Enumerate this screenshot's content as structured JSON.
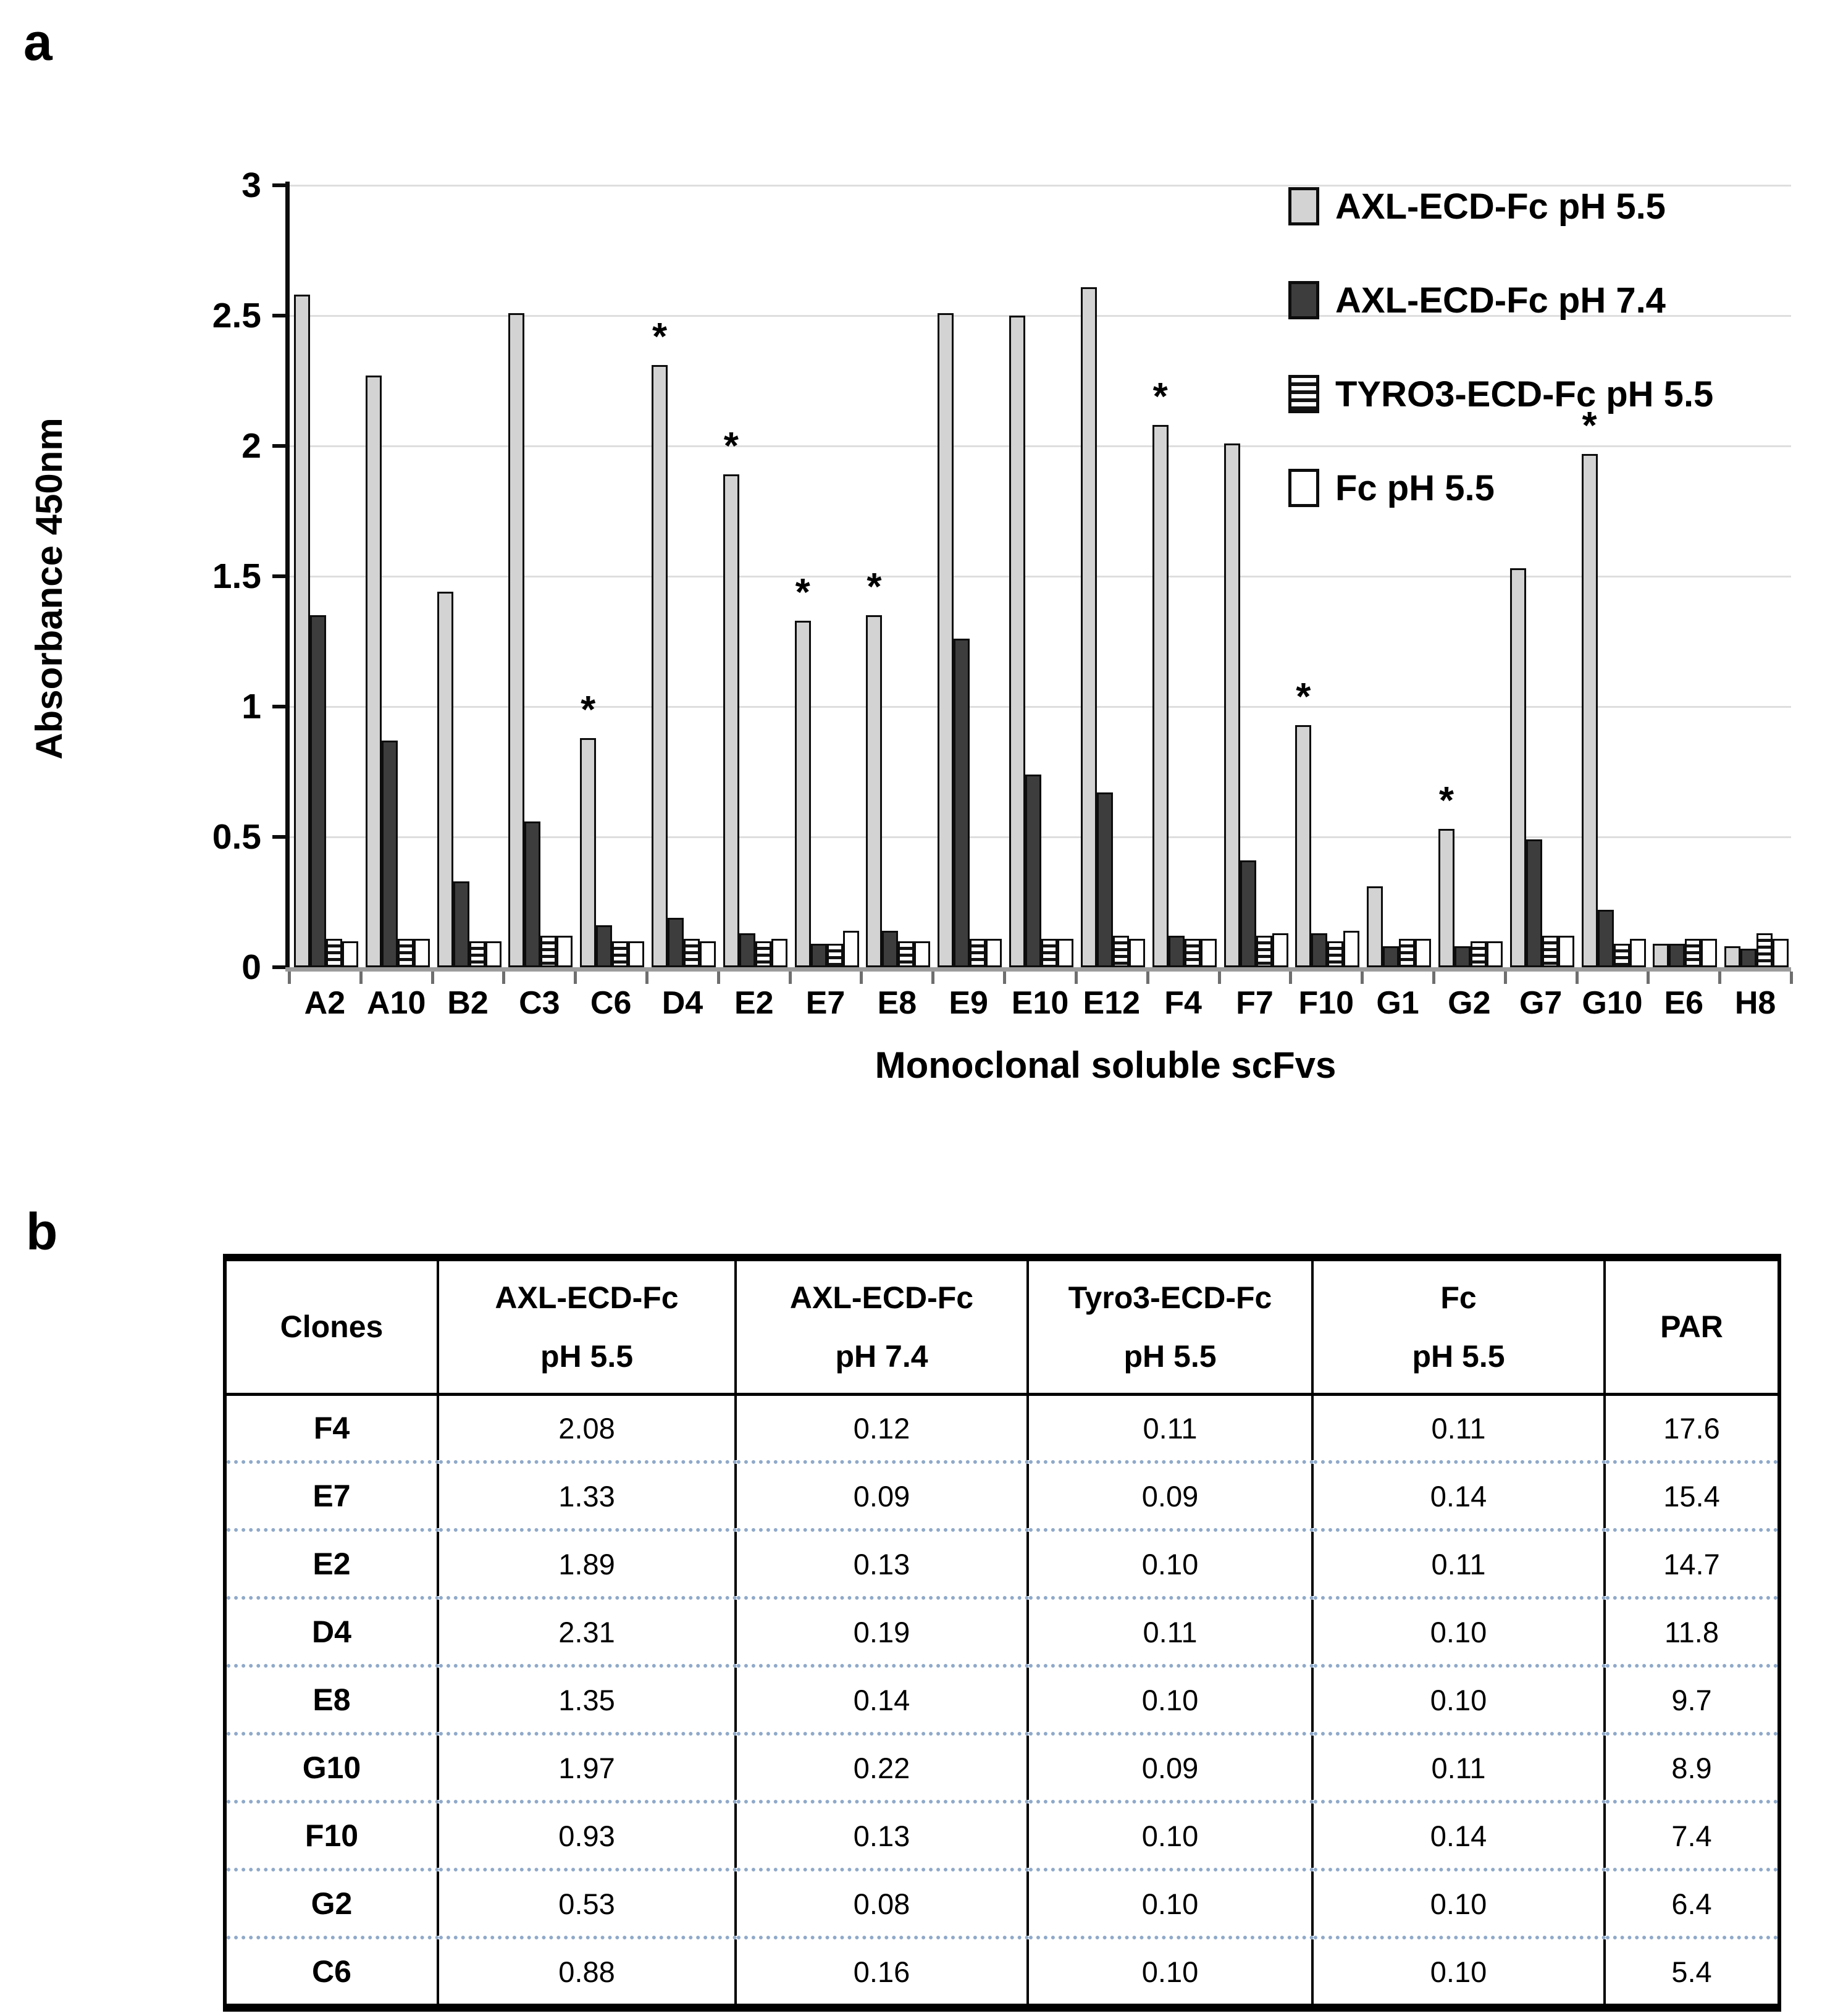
{
  "figure": {
    "panel_a_label": "a",
    "panel_b_label": "b"
  },
  "colors": {
    "bar_axl_ph55_fill": "#d3d3d3",
    "bar_axl_ph74_fill": "#3d3d3d",
    "bar_outline": "#0d0d0d",
    "bar_tyro3_pattern": "horizontal-stripes",
    "bar_fc_fill": "#ffffff",
    "gridline": "#dedede",
    "table_row_divider": "#8fa9c9"
  },
  "chart_data": [
    {
      "panel": "a",
      "type": "bar",
      "title": "",
      "xlabel": "Monoclonal soluble scFvs",
      "ylabel": "Absorbance 450nm",
      "ylim": [
        0,
        3
      ],
      "yticks": [
        0,
        0.5,
        1,
        1.5,
        2,
        2.5,
        3
      ],
      "ytick_labels": [
        "0",
        "0.5",
        "1",
        "1.5",
        "2",
        "2.5",
        "3"
      ],
      "grid": true,
      "legend_position": "top-right",
      "categories": [
        "A2",
        "A10",
        "B2",
        "C3",
        "C6",
        "D4",
        "E2",
        "E7",
        "E8",
        "E9",
        "E10",
        "E12",
        "F4",
        "F7",
        "F10",
        "G1",
        "G2",
        "G7",
        "G10",
        "E6",
        "H8"
      ],
      "series": [
        {
          "name": "AXL-ECD-Fc pH 5.5",
          "pattern": "light-gray",
          "values": [
            2.58,
            2.27,
            1.44,
            2.51,
            0.88,
            2.31,
            1.89,
            1.33,
            1.35,
            2.51,
            2.5,
            2.61,
            2.08,
            2.01,
            0.93,
            0.31,
            0.53,
            1.53,
            1.97,
            0.09,
            0.08
          ]
        },
        {
          "name": "AXL-ECD-Fc pH 7.4",
          "pattern": "dark-gray",
          "values": [
            1.35,
            0.87,
            0.33,
            0.56,
            0.16,
            0.19,
            0.13,
            0.09,
            0.14,
            1.26,
            0.74,
            0.67,
            0.12,
            0.41,
            0.13,
            0.08,
            0.08,
            0.49,
            0.22,
            0.09,
            0.07
          ]
        },
        {
          "name": "TYRO3-ECD-Fc pH 5.5",
          "pattern": "horizontal-stripes",
          "values": [
            0.11,
            0.11,
            0.1,
            0.12,
            0.1,
            0.11,
            0.1,
            0.09,
            0.1,
            0.11,
            0.11,
            0.12,
            0.11,
            0.12,
            0.1,
            0.11,
            0.1,
            0.12,
            0.09,
            0.11,
            0.13
          ]
        },
        {
          "name": "Fc pH 5.5",
          "pattern": "white",
          "values": [
            0.1,
            0.11,
            0.1,
            0.12,
            0.1,
            0.1,
            0.11,
            0.14,
            0.1,
            0.11,
            0.11,
            0.11,
            0.11,
            0.13,
            0.14,
            0.11,
            0.1,
            0.12,
            0.11,
            0.11,
            0.11
          ]
        }
      ],
      "significance_star": "*",
      "starred_categories": [
        "C6",
        "D4",
        "E2",
        "E7",
        "E8",
        "F4",
        "F10",
        "G2",
        "G10"
      ]
    },
    {
      "panel": "b",
      "type": "table",
      "columns": [
        "Clones",
        "AXL-ECD-Fc\npH 5.5",
        "AXL-ECD-Fc\npH 7.4",
        "Tyro3-ECD-Fc\npH 5.5",
        "Fc\npH 5.5",
        "PAR"
      ],
      "rows": [
        [
          "F4",
          "2.08",
          "0.12",
          "0.11",
          "0.11",
          "17.6"
        ],
        [
          "E7",
          "1.33",
          "0.09",
          "0.09",
          "0.14",
          "15.4"
        ],
        [
          "E2",
          "1.89",
          "0.13",
          "0.10",
          "0.11",
          "14.7"
        ],
        [
          "D4",
          "2.31",
          "0.19",
          "0.11",
          "0.10",
          "11.8"
        ],
        [
          "E8",
          "1.35",
          "0.14",
          "0.10",
          "0.10",
          "9.7"
        ],
        [
          "G10",
          "1.97",
          "0.22",
          "0.09",
          "0.11",
          "8.9"
        ],
        [
          "F10",
          "0.93",
          "0.13",
          "0.10",
          "0.14",
          "7.4"
        ],
        [
          "G2",
          "0.53",
          "0.08",
          "0.10",
          "0.10",
          "6.4"
        ],
        [
          "C6",
          "0.88",
          "0.16",
          "0.10",
          "0.10",
          "5.4"
        ]
      ]
    }
  ]
}
